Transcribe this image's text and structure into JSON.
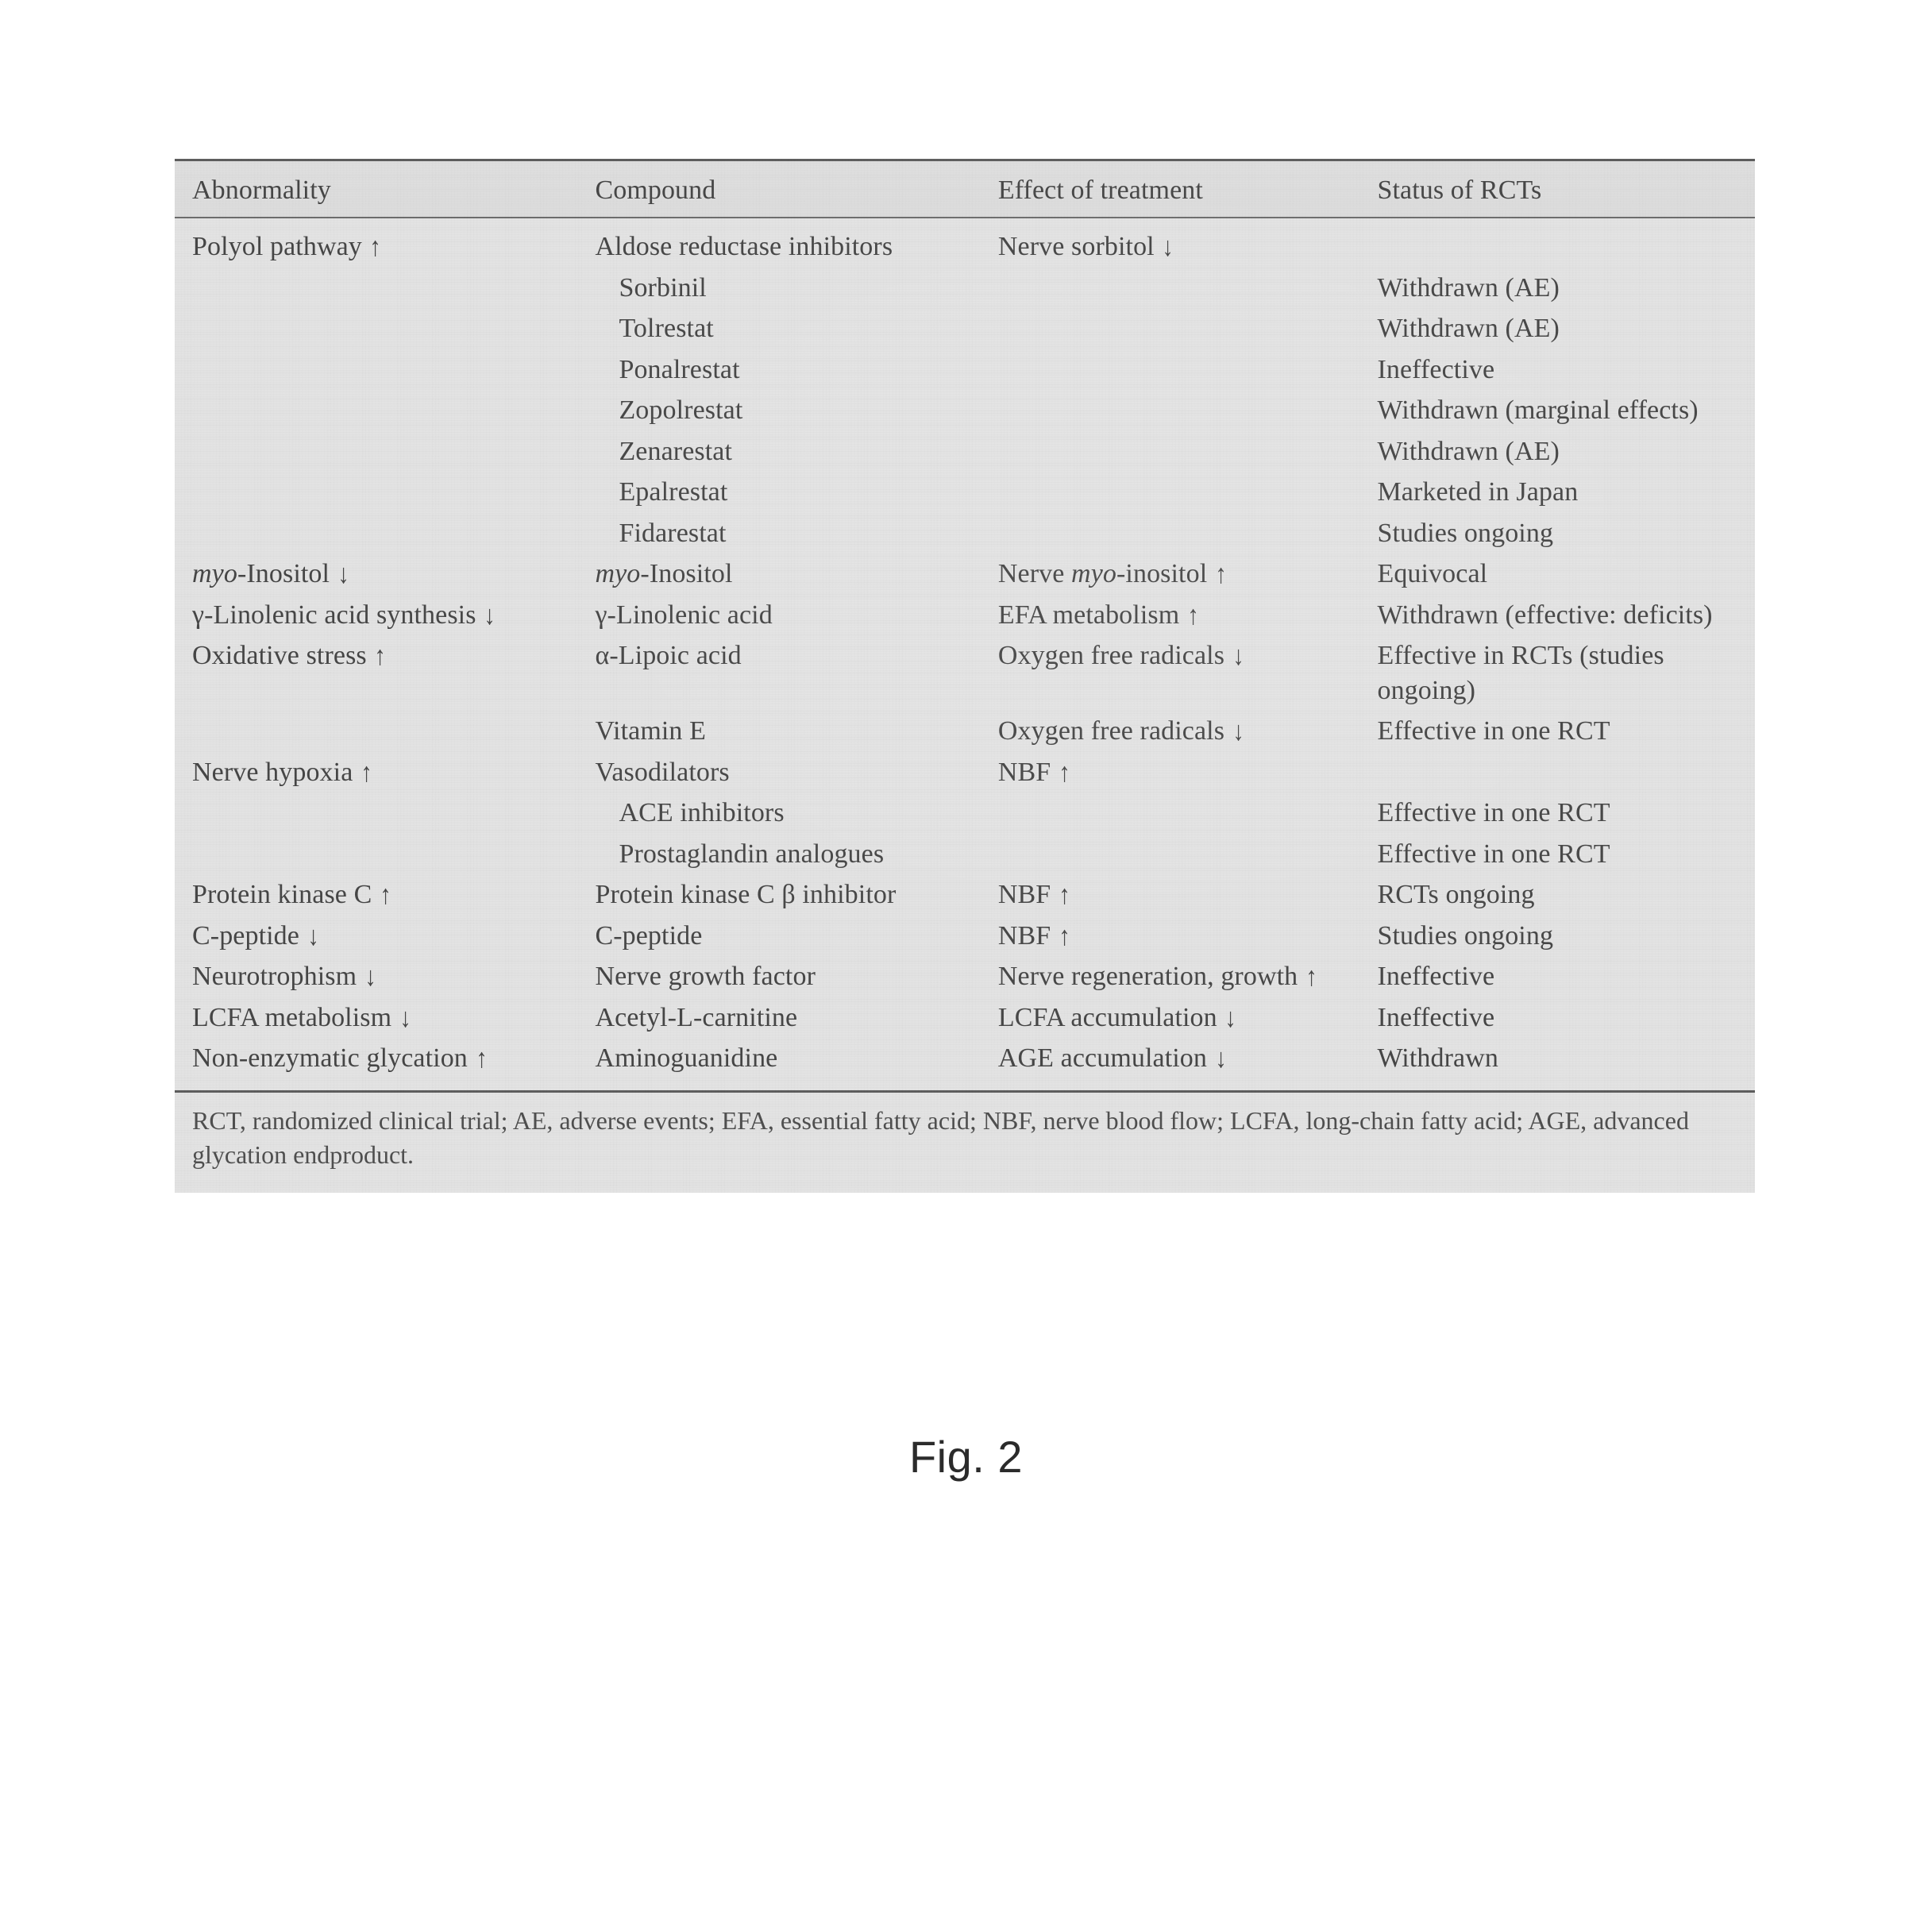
{
  "table": {
    "background": "#e9e9e9",
    "rule_color": "#5a5a5a",
    "text_color": "#404040",
    "font_family": "Times New Roman",
    "font_size_pt": 10,
    "columns": [
      {
        "label": "Abnormality",
        "width_pct": 25.5
      },
      {
        "label": "Compound",
        "width_pct": 25.5
      },
      {
        "label": "Effect of treatment",
        "width_pct": 24.0
      },
      {
        "label": "Status of RCTs",
        "width_pct": 25.0
      }
    ],
    "rows": [
      {
        "c1": "Polyol pathway ↑",
        "c2": "Aldose reductase inhibitors",
        "c3": "Nerve sorbitol ↓",
        "c4": ""
      },
      {
        "c1": "",
        "c2_indent": true,
        "c2": "Sorbinil",
        "c3": "",
        "c4": "Withdrawn (AE)"
      },
      {
        "c1": "",
        "c2_indent": true,
        "c2": "Tolrestat",
        "c3": "",
        "c4": "Withdrawn (AE)"
      },
      {
        "c1": "",
        "c2_indent": true,
        "c2": "Ponalrestat",
        "c3": "",
        "c4": "Ineffective"
      },
      {
        "c1": "",
        "c2_indent": true,
        "c2": "Zopolrestat",
        "c3": "",
        "c4": "Withdrawn (marginal effects)"
      },
      {
        "c1": "",
        "c2_indent": true,
        "c2": "Zenarestat",
        "c3": "",
        "c4": "Withdrawn (AE)"
      },
      {
        "c1": "",
        "c2_indent": true,
        "c2": "Epalrestat",
        "c3": "",
        "c4": "Marketed in Japan"
      },
      {
        "c1": "",
        "c2_indent": true,
        "c2": "Fidarestat",
        "c3": "",
        "c4": "Studies ongoing"
      },
      {
        "c1_html": "<span class='ital'>myo</span>-Inositol ↓",
        "c2_html": "<span class='ital'>myo</span>-Inositol",
        "c3_html": "Nerve <span class='ital'>myo</span>-inositol ↑",
        "c4": "Equivocal"
      },
      {
        "c1": "γ-Linolenic acid synthesis ↓",
        "c2": "γ-Linolenic acid",
        "c3": "EFA metabolism ↑",
        "c4": "Withdrawn (effective: deficits)"
      },
      {
        "c1": "Oxidative stress ↑",
        "c2": "α-Lipoic acid",
        "c3": "Oxygen free radicals ↓",
        "c4": "Effective in RCTs (studies ongoing)"
      },
      {
        "c1": "",
        "c2": "Vitamin E",
        "c3": "Oxygen free radicals ↓",
        "c4": "Effective in one RCT"
      },
      {
        "c1": "Nerve hypoxia ↑",
        "c2": "Vasodilators",
        "c3": "NBF ↑",
        "c4": ""
      },
      {
        "c1": "",
        "c2_indent": true,
        "c2": "ACE inhibitors",
        "c3": "",
        "c4": "Effective in one RCT"
      },
      {
        "c1": "",
        "c2_indent": true,
        "c2": "Prostaglandin analogues",
        "c3": "",
        "c4": "Effective in one RCT"
      },
      {
        "c1": "Protein kinase C ↑",
        "c2": "Protein kinase C β inhibitor",
        "c3": "NBF ↑",
        "c4": "RCTs ongoing"
      },
      {
        "c1": "C-peptide ↓",
        "c2": "C-peptide",
        "c3": "NBF ↑",
        "c4": "Studies ongoing"
      },
      {
        "c1": "Neurotrophism ↓",
        "c2": "Nerve growth factor",
        "c3": "Nerve regeneration, growth ↑",
        "c4": "Ineffective"
      },
      {
        "c1": "LCFA metabolism ↓",
        "c2": "Acetyl-L-carnitine",
        "c3": "LCFA accumulation ↓",
        "c4": "Ineffective"
      },
      {
        "c1": "Non-enzymatic glycation ↑",
        "c2": "Aminoguanidine",
        "c3": "AGE accumulation ↓",
        "c4": "Withdrawn"
      }
    ],
    "footnote": "RCT, randomized clinical trial; AE, adverse events; EFA, essential fatty acid; NBF, nerve blood flow; LCFA, long-chain fatty acid; AGE, advanced glycation endproduct."
  },
  "caption": "Fig. 2"
}
